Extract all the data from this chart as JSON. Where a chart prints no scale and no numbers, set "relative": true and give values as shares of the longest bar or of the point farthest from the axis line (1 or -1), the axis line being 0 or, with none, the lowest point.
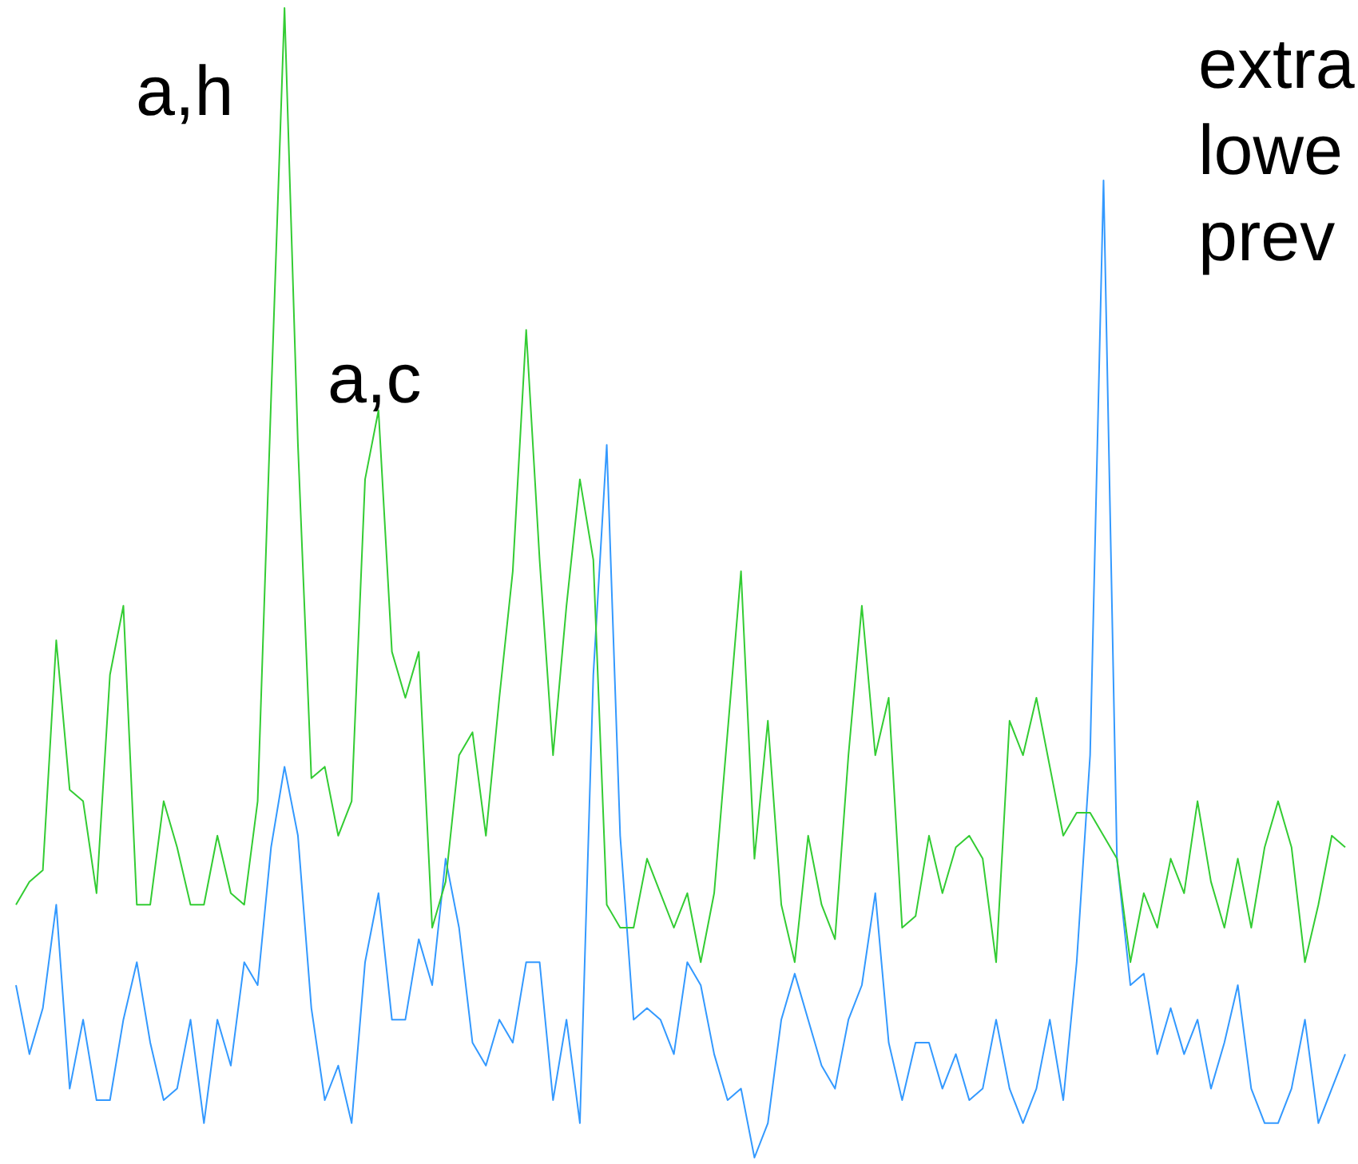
{
  "chart_data": {
    "type": "line",
    "relative": true,
    "categories": [
      null,
      null,
      null,
      null,
      null,
      null,
      null,
      null,
      null,
      null,
      null,
      null,
      null,
      null,
      null,
      null,
      null,
      null,
      null,
      null,
      null,
      null,
      null,
      null,
      null,
      null,
      null,
      null,
      null,
      null,
      null,
      null,
      null,
      null,
      null,
      null,
      null,
      null,
      null,
      null,
      null,
      null,
      null,
      null,
      null,
      null,
      null,
      null,
      null,
      null,
      null,
      null,
      null,
      null,
      null,
      null,
      null,
      null,
      null,
      null,
      null,
      null,
      null,
      null,
      null,
      null,
      null,
      null,
      null,
      null,
      null,
      null,
      null,
      null,
      null,
      null,
      null,
      null,
      null,
      null,
      null,
      null,
      null,
      null,
      null,
      null,
      null,
      null,
      null,
      null,
      null,
      null,
      null,
      null,
      null,
      null,
      null,
      null,
      null,
      null
    ],
    "series": [
      {
        "color": "#33cc33",
        "values": [
          0.22,
          0.24,
          0.25,
          0.45,
          0.32,
          0.31,
          0.23,
          0.42,
          0.48,
          0.22,
          0.22,
          0.31,
          0.27,
          0.22,
          0.22,
          0.28,
          0.23,
          0.22,
          0.31,
          0.66,
          1,
          0.62,
          0.33,
          0.34,
          0.28,
          0.31,
          0.59,
          0.65,
          0.44,
          0.4,
          0.44,
          0.2,
          0.24,
          0.35,
          0.37,
          0.28,
          0.4,
          0.51,
          0.72,
          0.52,
          0.35,
          0.48,
          0.59,
          0.52,
          0.22,
          0.2,
          0.2,
          0.26,
          0.23,
          0.2,
          0.23,
          0.17,
          0.23,
          0.37,
          0.51,
          0.26,
          0.38,
          0.22,
          0.17,
          0.28,
          0.22,
          0.19,
          0.35,
          0.48,
          0.35,
          0.4,
          0.2,
          0.21,
          0.28,
          0.23,
          0.27,
          0.28,
          0.26,
          0.17,
          0.38,
          0.35,
          0.4,
          0.34,
          0.28,
          0.3,
          0.3,
          0.28,
          0.26,
          0.17,
          0.23,
          0.2,
          0.26,
          0.23,
          0.31,
          0.24,
          0.2,
          0.26,
          0.2,
          0.27,
          0.31,
          0.27,
          0.17,
          0.22,
          0.28,
          0.27
        ]
      },
      {
        "color": "#3399ff",
        "values": [
          0.15,
          0.09,
          0.13,
          0.22,
          0.06,
          0.12,
          0.05,
          0.05,
          0.12,
          0.17,
          0.1,
          0.05,
          0.06,
          0.12,
          0.03,
          0.12,
          0.08,
          0.17,
          0.15,
          0.27,
          0.34,
          0.28,
          0.13,
          0.05,
          0.08,
          0.03,
          0.17,
          0.23,
          0.12,
          0.12,
          0.19,
          0.15,
          0.26,
          0.2,
          0.1,
          0.08,
          0.12,
          0.1,
          0.17,
          0.17,
          0.05,
          0.12,
          0.03,
          0.42,
          0.62,
          0.28,
          0.12,
          0.13,
          0.12,
          0.09,
          0.17,
          0.15,
          0.09,
          0.05,
          0.06,
          0,
          0.03,
          0.12,
          0.16,
          0.12,
          0.08,
          0.06,
          0.12,
          0.15,
          0.23,
          0.1,
          0.05,
          0.1,
          0.1,
          0.06,
          0.09,
          0.05,
          0.06,
          0.12,
          0.06,
          0.03,
          0.06,
          0.12,
          0.05,
          0.17,
          0.35,
          0.85,
          0.26,
          0.15,
          0.16,
          0.09,
          0.13,
          0.09,
          0.12,
          0.06,
          0.1,
          0.15,
          0.06,
          0.03,
          0.03,
          0.06,
          0.12,
          0.03,
          0.06,
          0.09
        ]
      }
    ],
    "annotations": [
      "a,h",
      "a,c",
      "extra\nlowe\nprev"
    ]
  }
}
